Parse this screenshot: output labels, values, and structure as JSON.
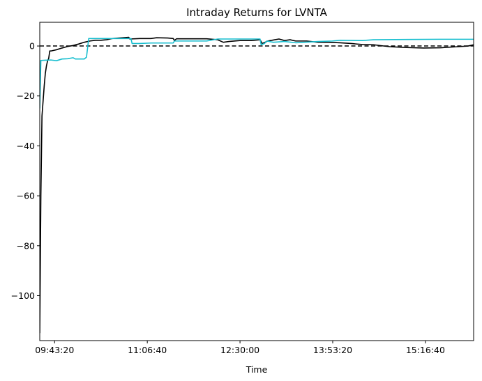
{
  "chart_data": {
    "type": "line",
    "title": "Intraday Returns for LVNTA",
    "xlabel": "Time",
    "ylabel": "",
    "x_unit": "time_of_day",
    "xlim": [
      "09:30:00",
      "16:00:00"
    ],
    "ylim": [
      -118,
      9.5
    ],
    "x_ticks": [
      "09:43:20",
      "11:06:40",
      "12:30:00",
      "13:53:20",
      "15:16:40"
    ],
    "y_ticks": [
      0,
      -20,
      -40,
      -60,
      -80,
      -100
    ],
    "y_tick_labels": [
      "0",
      "−20",
      "−40",
      "−60",
      "−80",
      "−100"
    ],
    "grid": false,
    "legend": null,
    "reference_lines": [
      {
        "orientation": "horizontal",
        "y": 0,
        "style": "dashed",
        "color": "#000000"
      }
    ],
    "series": [
      {
        "color": "#000000",
        "points": [
          [
            "09:30:00",
            -115
          ],
          [
            "09:31:00",
            -60
          ],
          [
            "09:32:00",
            -28
          ],
          [
            "09:33:00",
            -22
          ],
          [
            "09:34:00",
            -16
          ],
          [
            "09:35:00",
            -11
          ],
          [
            "09:36:00",
            -8
          ],
          [
            "09:37:00",
            -6
          ],
          [
            "09:38:00",
            -5
          ],
          [
            "09:39:00",
            -2
          ],
          [
            "09:40:00",
            -2
          ],
          [
            "09:42:00",
            -1.8
          ],
          [
            "09:45:00",
            -1.5
          ],
          [
            "09:50:00",
            -0.8
          ],
          [
            "09:55:00",
            -0.2
          ],
          [
            "10:00:00",
            0.2
          ],
          [
            "10:05:00",
            0.8
          ],
          [
            "10:10:00",
            1.5
          ],
          [
            "10:15:00",
            2.0
          ],
          [
            "10:20:00",
            2.3
          ],
          [
            "10:25:00",
            2.3
          ],
          [
            "10:30:00",
            2.5
          ],
          [
            "10:35:00",
            3.0
          ],
          [
            "10:45:00",
            3.3
          ],
          [
            "10:50:00",
            3.5
          ],
          [
            "10:51:00",
            2.8
          ],
          [
            "11:00:00",
            3.0
          ],
          [
            "11:10:00",
            3.0
          ],
          [
            "11:15:00",
            3.3
          ],
          [
            "11:25:00",
            3.2
          ],
          [
            "11:30:00",
            3.0
          ],
          [
            "11:31:00",
            2.2
          ],
          [
            "11:33:00",
            2.9
          ],
          [
            "11:45:00",
            2.9
          ],
          [
            "12:00:00",
            2.9
          ],
          [
            "12:10:00",
            2.5
          ],
          [
            "12:15:00",
            1.5
          ],
          [
            "12:20:00",
            1.8
          ],
          [
            "12:30:00",
            2.2
          ],
          [
            "12:40:00",
            2.2
          ],
          [
            "12:48:00",
            2.5
          ],
          [
            "12:50:00",
            1.0
          ],
          [
            "12:55:00",
            2.0
          ],
          [
            "13:00:00",
            2.4
          ],
          [
            "13:05:00",
            2.8
          ],
          [
            "13:10:00",
            2.2
          ],
          [
            "13:15:00",
            2.5
          ],
          [
            "13:20:00",
            2.0
          ],
          [
            "13:30:00",
            2.0
          ],
          [
            "13:40:00",
            1.5
          ],
          [
            "13:50:00",
            1.5
          ],
          [
            "14:00:00",
            1.3
          ],
          [
            "14:10:00",
            1.0
          ],
          [
            "14:20:00",
            0.6
          ],
          [
            "14:30:00",
            0.5
          ],
          [
            "14:45:00",
            -0.3
          ],
          [
            "15:00:00",
            -0.6
          ],
          [
            "15:15:00",
            -0.8
          ],
          [
            "15:30:00",
            -0.7
          ],
          [
            "15:45:00",
            -0.3
          ],
          [
            "15:55:00",
            0.0
          ],
          [
            "16:00:00",
            0.5
          ]
        ]
      },
      {
        "color": "#17BECF",
        "points": [
          [
            "09:30:00",
            -25
          ],
          [
            "09:31:00",
            -5.8
          ],
          [
            "09:35:00",
            -5.7
          ],
          [
            "09:40:00",
            -5.6
          ],
          [
            "09:45:00",
            -5.9
          ],
          [
            "09:50:00",
            -5.2
          ],
          [
            "09:55:00",
            -5.1
          ],
          [
            "10:00:00",
            -4.7
          ],
          [
            "10:02:00",
            -5.2
          ],
          [
            "10:10:00",
            -5.2
          ],
          [
            "10:12:00",
            -4.5
          ],
          [
            "10:14:00",
            3.0
          ],
          [
            "10:30:00",
            3.0
          ],
          [
            "10:45:00",
            3.0
          ],
          [
            "10:52:00",
            3.0
          ],
          [
            "10:53:00",
            1.0
          ],
          [
            "11:00:00",
            1.0
          ],
          [
            "11:10:00",
            1.2
          ],
          [
            "11:30:00",
            1.2
          ],
          [
            "11:31:00",
            2.0
          ],
          [
            "11:45:00",
            2.0
          ],
          [
            "12:00:00",
            2.0
          ],
          [
            "12:10:00",
            2.8
          ],
          [
            "12:30:00",
            2.8
          ],
          [
            "12:48:00",
            2.8
          ],
          [
            "12:49:00",
            0.5
          ],
          [
            "12:52:00",
            1.0
          ],
          [
            "12:54:00",
            2.0
          ],
          [
            "13:00:00",
            1.5
          ],
          [
            "13:10:00",
            1.8
          ],
          [
            "13:20:00",
            1.3
          ],
          [
            "13:40:00",
            1.8
          ],
          [
            "13:53:00",
            2.0
          ],
          [
            "14:00:00",
            2.3
          ],
          [
            "14:20:00",
            2.2
          ],
          [
            "14:30:00",
            2.5
          ],
          [
            "15:00:00",
            2.6
          ],
          [
            "15:30:00",
            2.7
          ],
          [
            "16:00:00",
            2.7
          ]
        ]
      }
    ]
  }
}
